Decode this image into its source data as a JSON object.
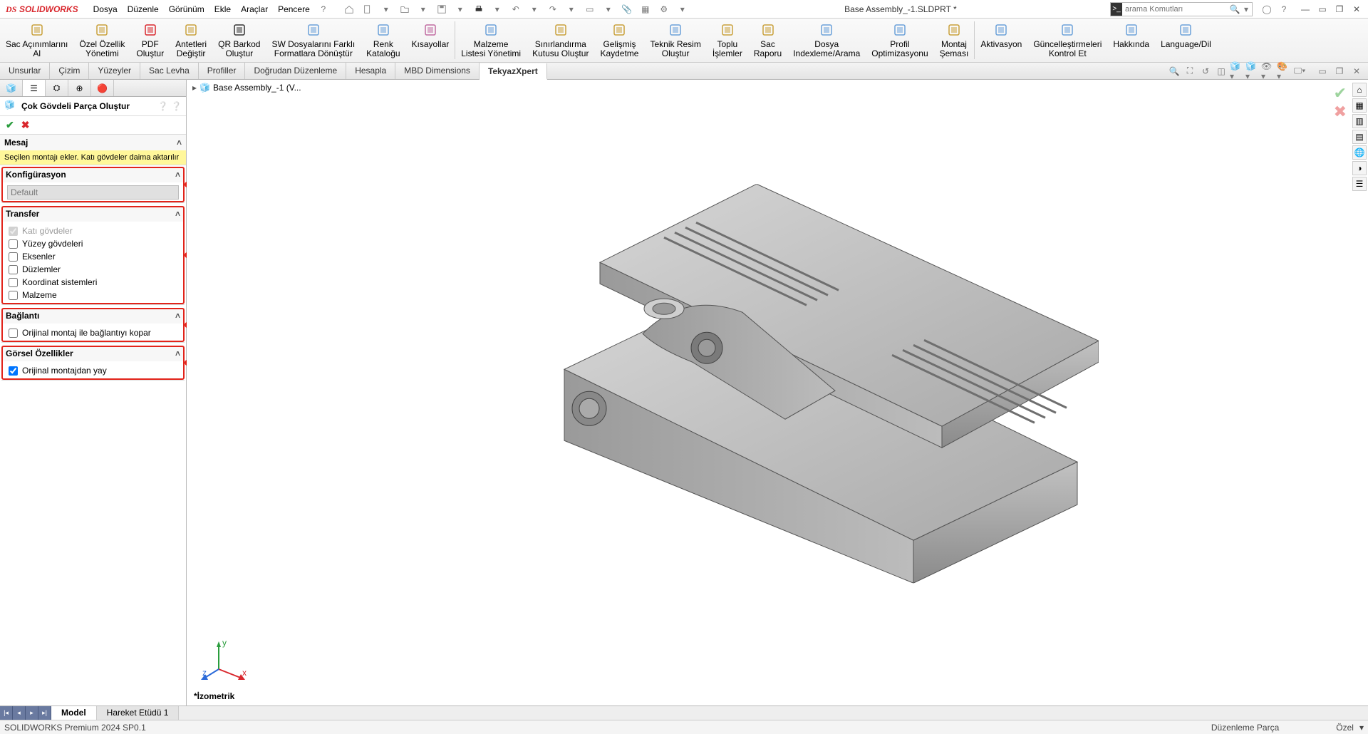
{
  "app": {
    "name": "SOLIDWORKS"
  },
  "menus": [
    "Dosya",
    "Düzenle",
    "Görünüm",
    "Ekle",
    "Araçlar",
    "Pencere"
  ],
  "docTitle": "Base Assembly_-1.SLDPRT *",
  "search": {
    "placeholder": "arama Komutları"
  },
  "ribbon": {
    "g1": [
      {
        "l1": "Sac Açınımlarını",
        "l2": "Al",
        "c": "#c9a03a"
      },
      {
        "l1": "Özel Özellik",
        "l2": "Yönetimi",
        "c": "#c9a03a"
      },
      {
        "l1": "PDF",
        "l2": "Oluştur",
        "c": "#d9272d"
      },
      {
        "l1": "Antetleri",
        "l2": "Değiştir",
        "c": "#c9a03a"
      },
      {
        "l1": "QR Barkod",
        "l2": "Oluştur",
        "c": "#333"
      },
      {
        "l1": "SW Dosyalarını Farklı",
        "l2": "Formatlara Dönüştür",
        "c": "#6aa0d9"
      },
      {
        "l1": "Renk",
        "l2": "Kataloğu",
        "c": "#6aa0d9"
      },
      {
        "l1": "Kısayollar",
        "l2": "",
        "c": "#c06aa0"
      }
    ],
    "g2": [
      {
        "l1": "Malzeme",
        "l2": "Listesi Yönetimi",
        "c": "#6aa0d9"
      },
      {
        "l1": "Sınırlandırma",
        "l2": "Kutusu Oluştur",
        "c": "#c9a03a"
      },
      {
        "l1": "Gelişmiş",
        "l2": "Kaydetme",
        "c": "#c9a03a"
      },
      {
        "l1": "Teknik Resim",
        "l2": "Oluştur",
        "c": "#6aa0d9"
      },
      {
        "l1": "Toplu",
        "l2": "İşlemler",
        "c": "#c9a03a"
      },
      {
        "l1": "Sac",
        "l2": "Raporu",
        "c": "#c9a03a"
      },
      {
        "l1": "Dosya",
        "l2": "Indexleme/Arama",
        "c": "#6aa0d9"
      },
      {
        "l1": "Profil",
        "l2": "Optimizasyonu",
        "c": "#6aa0d9"
      },
      {
        "l1": "Montaj",
        "l2": "Şeması",
        "c": "#c9a03a"
      }
    ],
    "g3": [
      {
        "l1": "Aktivasyon",
        "l2": "",
        "c": "#6aa0d9"
      },
      {
        "l1": "Güncelleştirmeleri",
        "l2": "Kontrol Et",
        "c": "#6aa0d9"
      },
      {
        "l1": "Hakkında",
        "l2": "",
        "c": "#6aa0d9"
      },
      {
        "l1": "Language/Dil",
        "l2": "",
        "c": "#6aa0d9"
      }
    ]
  },
  "tabs": [
    "Unsurlar",
    "Çizim",
    "Yüzeyler",
    "Sac Levha",
    "Profiller",
    "Doğrudan Düzenleme",
    "Hesapla",
    "MBD Dimensions",
    "TekyazXpert"
  ],
  "activeTab": "TekyazXpert",
  "pm": {
    "title": "Çok Gövdeli Parça Oluştur",
    "msgHeader": "Mesaj",
    "msgText": "Seçilen montajı ekler. Katı gövdeler daima aktarılır",
    "cfgHeader": "Konfigürasyon",
    "cfgValue": "Default",
    "trHeader": "Transfer",
    "trItems": [
      {
        "label": "Katı gövdeler",
        "checked": true,
        "disabled": true
      },
      {
        "label": "Yüzey gövdeleri",
        "checked": false
      },
      {
        "label": "Eksenler",
        "checked": false
      },
      {
        "label": "Düzlemler",
        "checked": false
      },
      {
        "label": "Koordinat sistemleri",
        "checked": false
      },
      {
        "label": "Malzeme",
        "checked": false
      }
    ],
    "linkHeader": "Bağlantı",
    "linkItem": "Orijinal montaj ile bağlantıyı kopar",
    "visHeader": "Görsel Özellikler",
    "visItem": "Orijinal montajdan yay"
  },
  "breadcrumb": "Base Assembly_-1 (V...",
  "viewLabel": "İzometrik",
  "bottomTabs": [
    "Model",
    "Hareket Etüdü 1"
  ],
  "activeBottom": "Model",
  "status": {
    "left": "SOLIDWORKS Premium 2024 SP0.1",
    "mid": "Düzenleme Parça",
    "right": "Özel"
  },
  "callouts": [
    "1",
    "2",
    "3",
    "4"
  ],
  "colors": {
    "model": "#bcbcbc",
    "modelDark": "#8f8f8f",
    "modelLight": "#d6d6d6"
  }
}
